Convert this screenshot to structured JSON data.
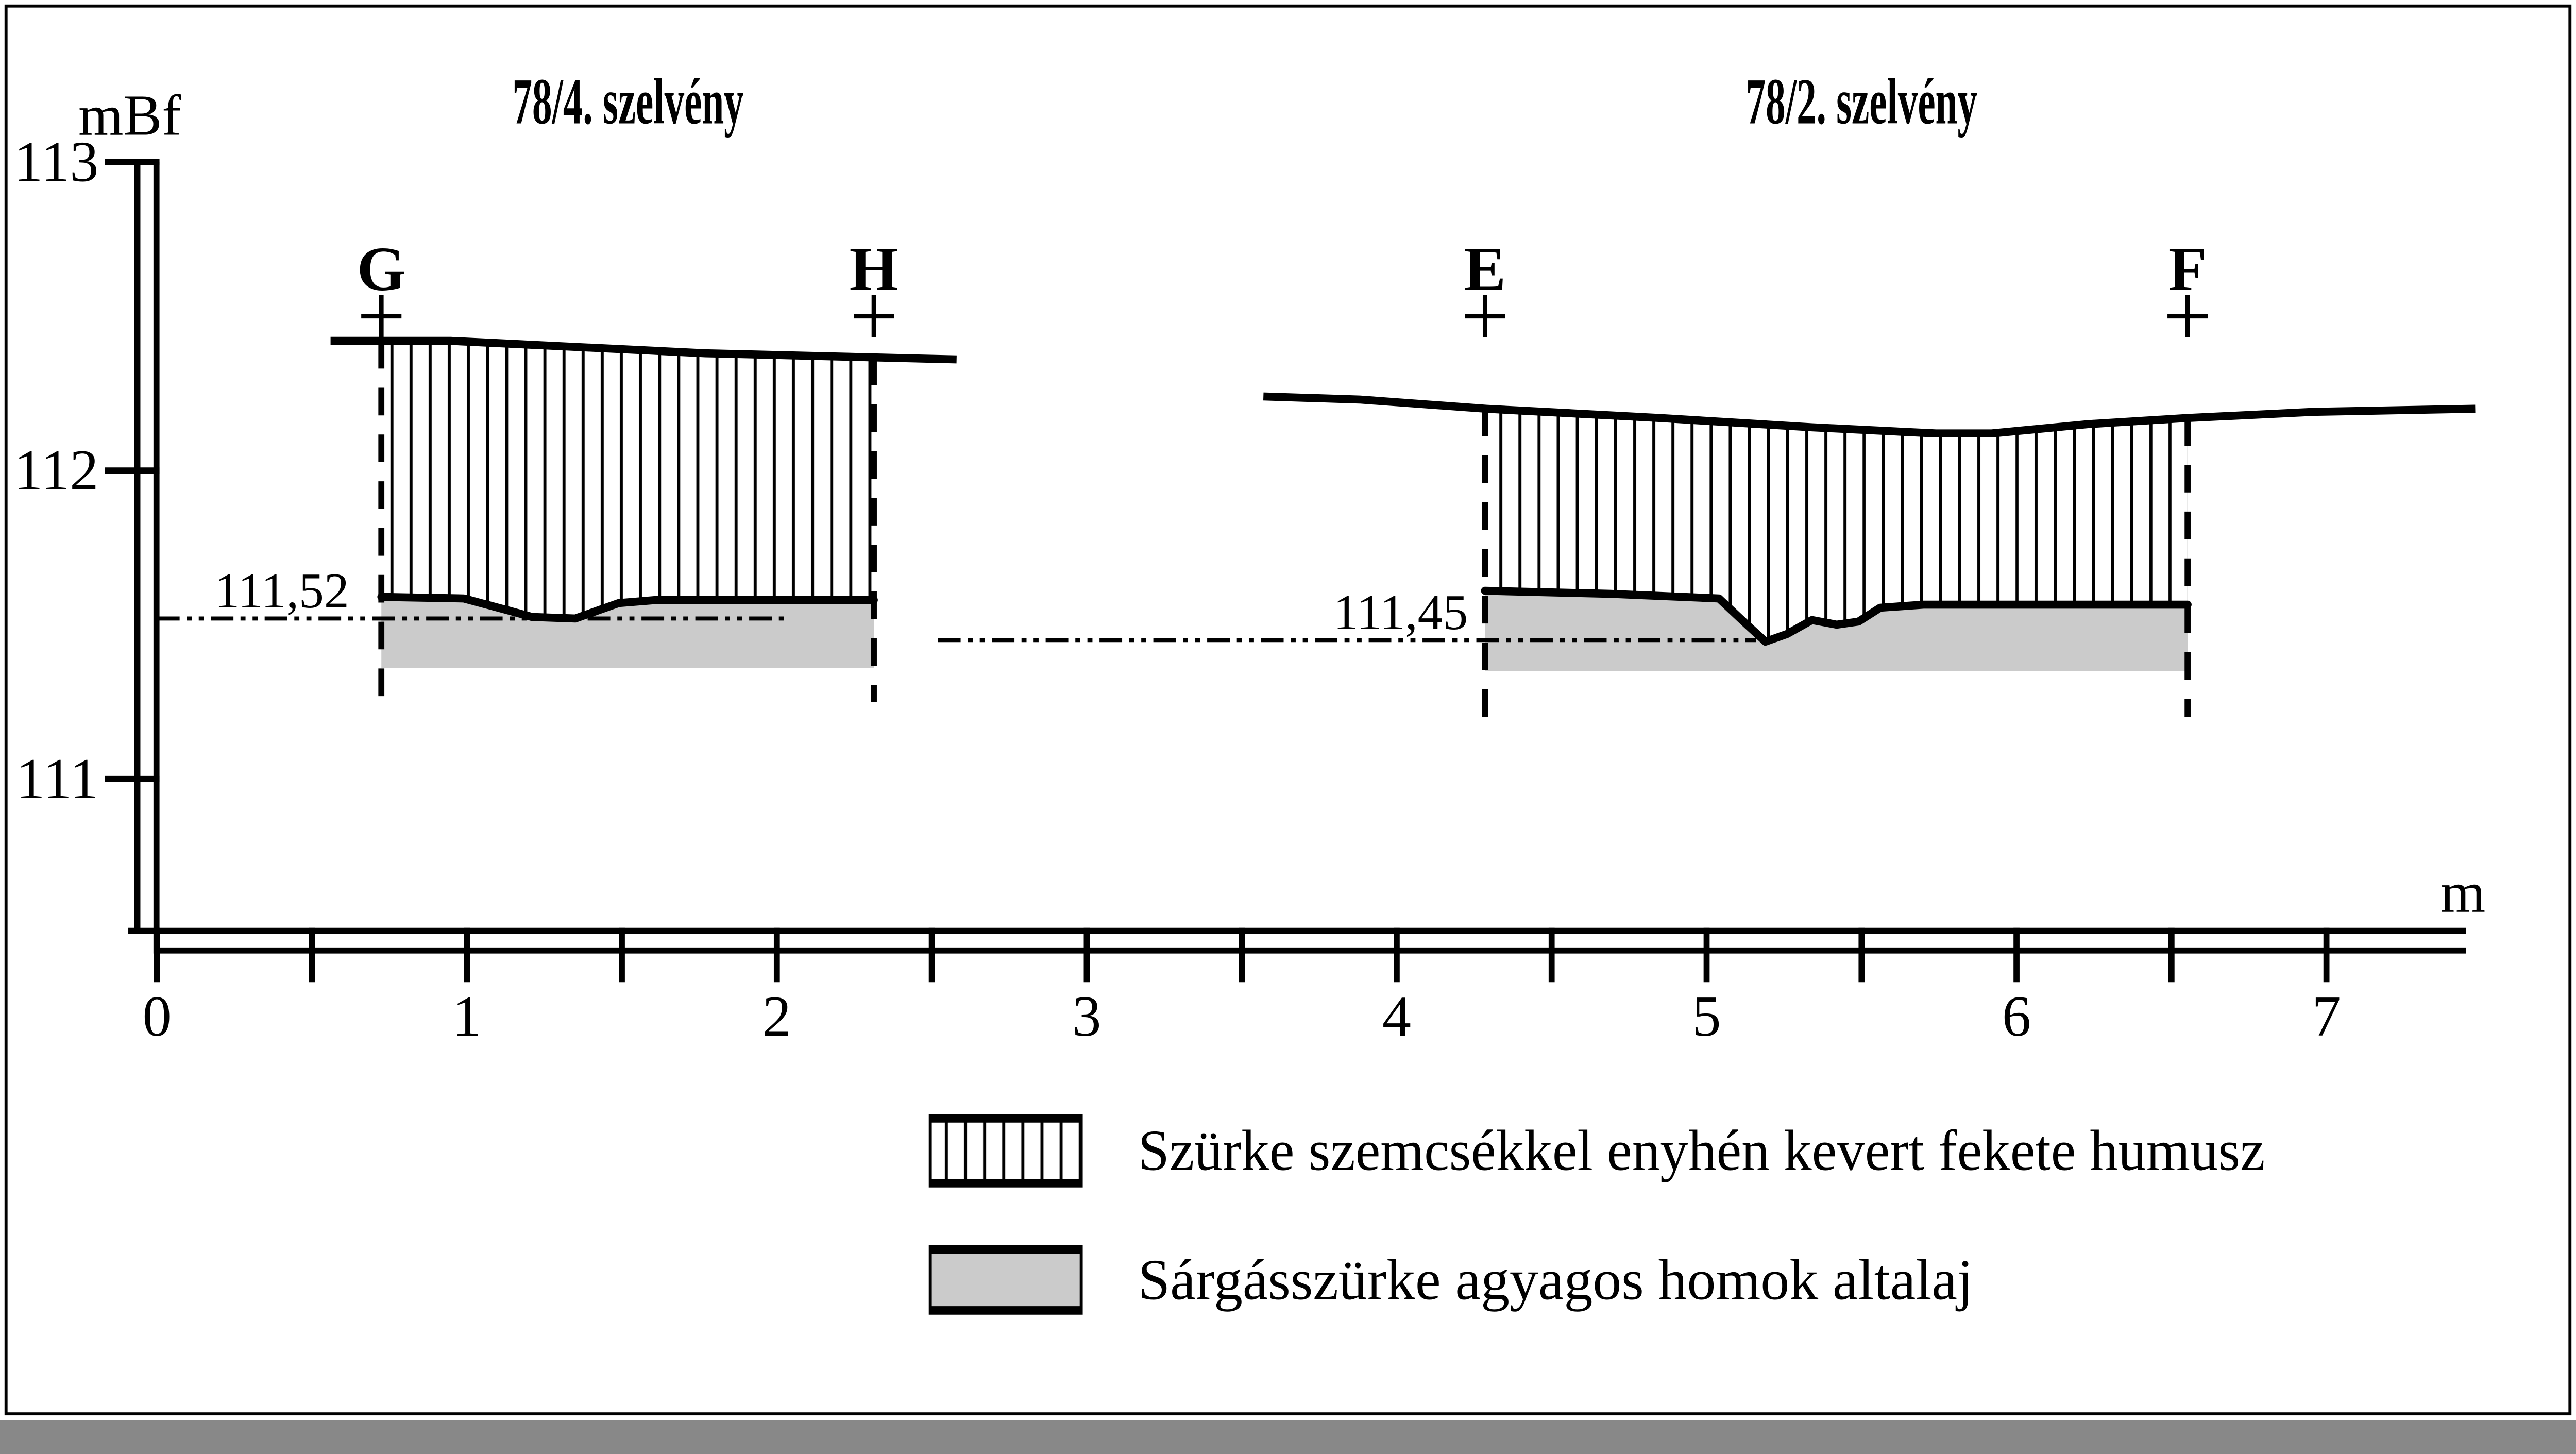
{
  "figure": {
    "background": "#ffffff",
    "ink": "#000000",
    "subsoil_grey": "#cbcbcb"
  },
  "y_axis": {
    "unit_label": "mBf",
    "top_elevation": 113,
    "ticks": [
      {
        "label": "113",
        "elevation": 113
      },
      {
        "label": "112",
        "elevation": 112
      },
      {
        "label": "111",
        "elevation": 111
      }
    ]
  },
  "x_axis": {
    "unit_label": "m",
    "minor_step_m": 0.5,
    "max_tick_m": 7,
    "band_end_m": 7.45,
    "labeled_ticks": [
      {
        "label": "0",
        "m": 0
      },
      {
        "label": "1",
        "m": 1
      },
      {
        "label": "2",
        "m": 2
      },
      {
        "label": "3",
        "m": 3
      },
      {
        "label": "4",
        "m": 4
      },
      {
        "label": "5",
        "m": 5
      },
      {
        "label": "6",
        "m": 6
      },
      {
        "label": "7",
        "m": 7
      }
    ]
  },
  "sections": [
    {
      "title": "78/4. szelvény",
      "title_center_m": 1.52,
      "markers": [
        {
          "letter": "G",
          "m": 0.724,
          "cross_elevation": 112.5,
          "dash_bottom_elevation": 111.25
        },
        {
          "letter": "H",
          "m": 2.313,
          "cross_elevation": 112.5,
          "dash_bottom_elevation": 111.25
        }
      ],
      "surface_profile": [
        [
          0.56,
          112.42
        ],
        [
          0.95,
          112.42
        ],
        [
          1.36,
          112.4
        ],
        [
          1.77,
          112.38
        ],
        [
          2.17,
          112.37
        ],
        [
          2.58,
          112.36
        ]
      ],
      "humus_base_profile": [
        [
          0.724,
          111.59
        ],
        [
          0.99,
          111.585
        ],
        [
          1.12,
          111.55
        ],
        [
          1.21,
          111.525
        ],
        [
          1.35,
          111.52
        ],
        [
          1.49,
          111.57
        ],
        [
          1.61,
          111.58
        ],
        [
          2.313,
          111.58
        ]
      ],
      "subsoil_base_elevation": 111.36,
      "datum_line": {
        "label": "111,52",
        "elevation": 111.52,
        "from_m": 0,
        "to_m": 2.04,
        "label_right_m": 0.62
      }
    },
    {
      "title": "78/2. szelvény",
      "title_center_m": 5.5,
      "markers": [
        {
          "letter": "E",
          "m": 4.285,
          "cross_elevation": 112.5,
          "dash_bottom_elevation": 111.18
        },
        {
          "letter": "F",
          "m": 6.552,
          "cross_elevation": 112.5,
          "dash_bottom_elevation": 111.2
        }
      ],
      "surface_profile": [
        [
          3.57,
          112.24
        ],
        [
          3.88,
          112.23
        ],
        [
          4.29,
          112.2
        ],
        [
          4.85,
          112.17
        ],
        [
          5.34,
          112.14
        ],
        [
          5.74,
          112.12
        ],
        [
          5.92,
          112.12
        ],
        [
          6.23,
          112.15
        ],
        [
          6.55,
          112.17
        ],
        [
          6.96,
          112.19
        ],
        [
          7.48,
          112.2
        ]
      ],
      "humus_base_profile": [
        [
          4.285,
          111.61
        ],
        [
          4.69,
          111.6
        ],
        [
          5.04,
          111.585
        ],
        [
          5.13,
          111.5
        ],
        [
          5.19,
          111.445
        ],
        [
          5.26,
          111.47
        ],
        [
          5.34,
          111.515
        ],
        [
          5.42,
          111.5
        ],
        [
          5.49,
          111.51
        ],
        [
          5.56,
          111.555
        ],
        [
          5.7,
          111.565
        ],
        [
          6.552,
          111.565
        ]
      ],
      "subsoil_base_elevation": 111.35,
      "datum_line": {
        "label": "111,45",
        "elevation": 111.45,
        "from_m": 2.52,
        "to_m": 5.16,
        "label_right_m": 4.23
      }
    }
  ],
  "legend": {
    "items": [
      {
        "swatch": "hatched",
        "label": "Szürke szemcsékkel enyhén kevert fekete humusz"
      },
      {
        "swatch": "solid-grey",
        "label": "Sárgásszürke agyagos homok altalaj"
      }
    ]
  }
}
